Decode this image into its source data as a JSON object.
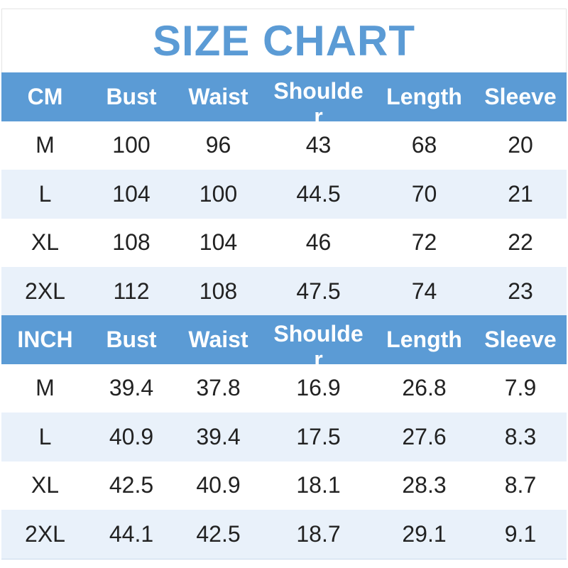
{
  "title": "SIZE CHART",
  "tables": [
    {
      "header": [
        "CM",
        "Bust",
        "Waist",
        "Shoulder",
        "Length",
        "Sleeve"
      ],
      "rows": [
        [
          "M",
          "100",
          "96",
          "43",
          "68",
          "20"
        ],
        [
          "L",
          "104",
          "100",
          "44.5",
          "70",
          "21"
        ],
        [
          "XL",
          "108",
          "104",
          "46",
          "72",
          "22"
        ],
        [
          "2XL",
          "112",
          "108",
          "47.5",
          "74",
          "23"
        ]
      ]
    },
    {
      "header": [
        "INCH",
        "Bust",
        "Waist",
        "Shoulder",
        "Length",
        "Sleeve"
      ],
      "rows": [
        [
          "M",
          "39.4",
          "37.8",
          "16.9",
          "26.8",
          "7.9"
        ],
        [
          "L",
          "40.9",
          "39.4",
          "17.5",
          "27.6",
          "8.3"
        ],
        [
          "XL",
          "42.5",
          "40.9",
          "18.1",
          "28.3",
          "8.7"
        ],
        [
          "2XL",
          "44.1",
          "42.5",
          "18.7",
          "29.1",
          "9.1"
        ]
      ]
    }
  ]
}
